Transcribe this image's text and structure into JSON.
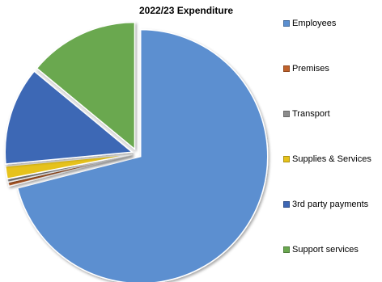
{
  "chart_data": {
    "type": "pie",
    "title": "2022/23 Expenditure",
    "categories": [
      "Employees",
      "Premises",
      "Transport",
      "Supplies & Services",
      "3rd party payments",
      "Support services"
    ],
    "values": [
      71.0,
      0.5,
      0.4,
      1.6,
      12.5,
      14.0
    ],
    "colors": [
      "#5b8fd0",
      "#c0622b",
      "#8c8c8c",
      "#e6c21a",
      "#3e67b5",
      "#6aa84f"
    ],
    "exploded": true,
    "legend_position": "right"
  }
}
